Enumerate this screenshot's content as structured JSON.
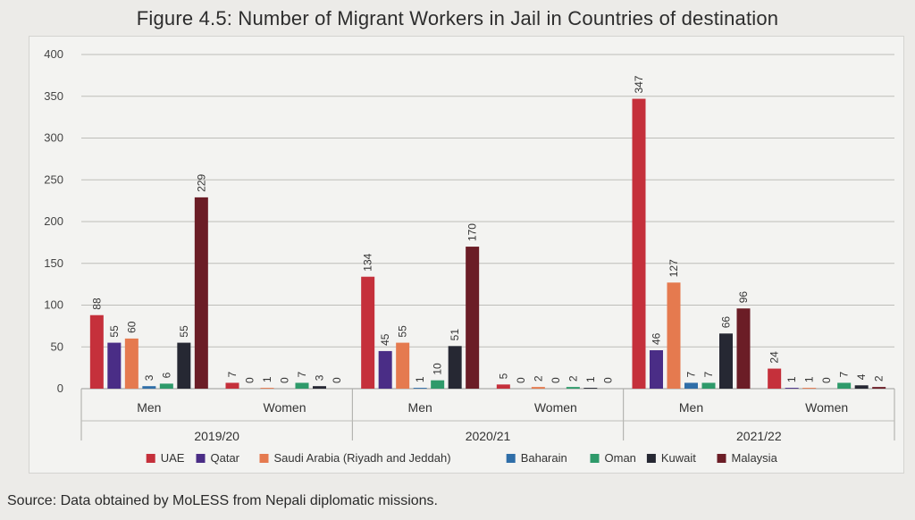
{
  "title": "Figure 4.5: Number of Migrant Workers in Jail in Countries of destination",
  "source": "Source: Data obtained by MoLESS from Nepali diplomatic missions.",
  "chart_data": {
    "type": "bar",
    "ylim": [
      0,
      400
    ],
    "yticks": [
      0,
      50,
      100,
      150,
      200,
      250,
      300,
      350,
      400
    ],
    "grid": true,
    "legend_position": "bottom",
    "groups": [
      {
        "year": "2019/20",
        "categories": [
          "Men",
          "Women"
        ]
      },
      {
        "year": "2020/21",
        "categories": [
          "Men",
          "Women"
        ]
      },
      {
        "year": "2021/22",
        "categories": [
          "Men",
          "Women"
        ]
      }
    ],
    "series": [
      {
        "name": "UAE",
        "color": "#c5303b",
        "values": [
          88,
          7,
          134,
          5,
          347,
          24
        ]
      },
      {
        "name": "Qatar",
        "color": "#4a2d86",
        "values": [
          55,
          0,
          45,
          0,
          46,
          1
        ]
      },
      {
        "name": "Saudi Arabia (Riyadh and Jeddah)",
        "color": "#e57a4f",
        "values": [
          60,
          1,
          55,
          2,
          127,
          1
        ]
      },
      {
        "name": "Baharain",
        "color": "#2f6ea8",
        "values": [
          3,
          0,
          1,
          0,
          7,
          0
        ]
      },
      {
        "name": "Oman",
        "color": "#2e9a6a",
        "values": [
          6,
          7,
          10,
          2,
          7,
          7
        ]
      },
      {
        "name": "Kuwait",
        "color": "#262833",
        "values": [
          55,
          3,
          51,
          1,
          66,
          4
        ]
      },
      {
        "name": "Malaysia",
        "color": "#6b1d26",
        "values": [
          229,
          0,
          170,
          0,
          96,
          2
        ]
      }
    ]
  }
}
